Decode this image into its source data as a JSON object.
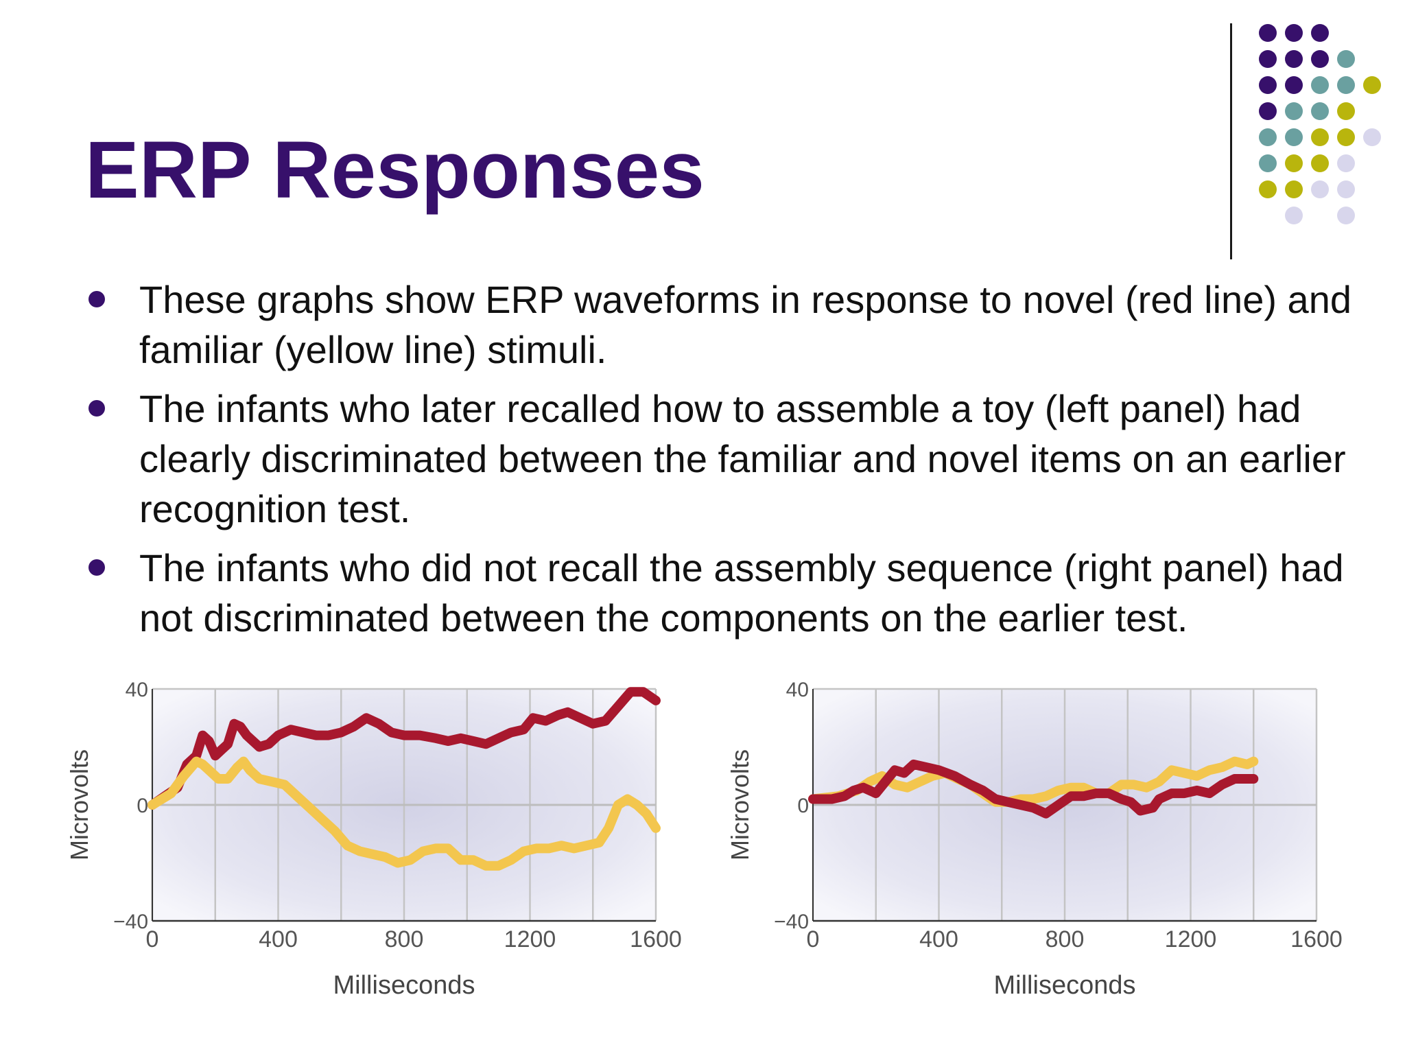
{
  "slide": {
    "title": "ERP Responses",
    "bullets": [
      "These graphs show ERP waveforms in response to novel (red line) and familiar (yellow line) stimuli.",
      "The infants who later recalled how to assemble a toy (left panel) had clearly discriminated between the familiar and novel items on an earlier recognition test.",
      "The infants who did not recall the assembly sequence (right panel) had not discriminated between the components on the earlier test."
    ]
  },
  "colors": {
    "title": "#37106b",
    "dot_purple": "#37106b",
    "dot_teal": "#6aa0a0",
    "dot_olive": "#b9b50d",
    "dot_lavender": "#d8d6ec",
    "novel_line": "#a8182e",
    "familiar_line": "#f3c64e",
    "plot_bg": "#e6e6f2",
    "grid": "#c4c4c4"
  },
  "decoration_dots": [
    [
      "purple",
      "purple",
      "purple",
      "",
      ""
    ],
    [
      "purple",
      "purple",
      "purple",
      "teal",
      ""
    ],
    [
      "purple",
      "purple",
      "teal",
      "teal",
      "olive"
    ],
    [
      "purple",
      "teal",
      "teal",
      "olive",
      ""
    ],
    [
      "teal",
      "teal",
      "olive",
      "olive",
      "lavender"
    ],
    [
      "teal",
      "olive",
      "olive",
      "lavender",
      ""
    ],
    [
      "olive",
      "olive",
      "lavender",
      "lavender",
      ""
    ],
    [
      "",
      "lavender",
      "",
      "lavender",
      ""
    ]
  ],
  "chart_data": [
    {
      "type": "line",
      "panel": "left",
      "xlabel": "Milliseconds",
      "ylabel": "Microvolts",
      "xlim": [
        0,
        1600
      ],
      "ylim": [
        -40,
        40
      ],
      "x_ticks": [
        "0",
        "400",
        "800",
        "1200",
        "1600"
      ],
      "y_ticks": [
        "40",
        "0",
        "−40"
      ],
      "grid": true,
      "series": [
        {
          "color": "novel_line",
          "points": [
            [
              0,
              0
            ],
            [
              40,
              3
            ],
            [
              80,
              6
            ],
            [
              110,
              14
            ],
            [
              140,
              17
            ],
            [
              160,
              24
            ],
            [
              180,
              22
            ],
            [
              200,
              17
            ],
            [
              220,
              19
            ],
            [
              240,
              21
            ],
            [
              260,
              28
            ],
            [
              280,
              27
            ],
            [
              300,
              24
            ],
            [
              340,
              20
            ],
            [
              370,
              21
            ],
            [
              400,
              24
            ],
            [
              440,
              26
            ],
            [
              480,
              25
            ],
            [
              520,
              24
            ],
            [
              560,
              24
            ],
            [
              600,
              25
            ],
            [
              640,
              27
            ],
            [
              680,
              30
            ],
            [
              720,
              28
            ],
            [
              760,
              25
            ],
            [
              800,
              24
            ],
            [
              850,
              24
            ],
            [
              900,
              23
            ],
            [
              940,
              22
            ],
            [
              980,
              23
            ],
            [
              1020,
              22
            ],
            [
              1060,
              21
            ],
            [
              1100,
              23
            ],
            [
              1140,
              25
            ],
            [
              1180,
              26
            ],
            [
              1210,
              30
            ],
            [
              1250,
              29
            ],
            [
              1290,
              31
            ],
            [
              1320,
              32
            ],
            [
              1360,
              30
            ],
            [
              1400,
              28
            ],
            [
              1440,
              29
            ],
            [
              1480,
              34
            ],
            [
              1520,
              39
            ],
            [
              1560,
              39
            ],
            [
              1600,
              36
            ]
          ]
        },
        {
          "color": "familiar_line",
          "points": [
            [
              0,
              0
            ],
            [
              60,
              4
            ],
            [
              100,
              10
            ],
            [
              140,
              15
            ],
            [
              160,
              14
            ],
            [
              180,
              12
            ],
            [
              210,
              9
            ],
            [
              240,
              9
            ],
            [
              270,
              13
            ],
            [
              290,
              15
            ],
            [
              310,
              12
            ],
            [
              340,
              9
            ],
            [
              380,
              8
            ],
            [
              420,
              7
            ],
            [
              460,
              3
            ],
            [
              500,
              -1
            ],
            [
              540,
              -5
            ],
            [
              580,
              -9
            ],
            [
              620,
              -14
            ],
            [
              660,
              -16
            ],
            [
              700,
              -17
            ],
            [
              740,
              -18
            ],
            [
              780,
              -20
            ],
            [
              820,
              -19
            ],
            [
              860,
              -16
            ],
            [
              900,
              -15
            ],
            [
              940,
              -15
            ],
            [
              980,
              -19
            ],
            [
              1020,
              -19
            ],
            [
              1060,
              -21
            ],
            [
              1100,
              -21
            ],
            [
              1140,
              -19
            ],
            [
              1180,
              -16
            ],
            [
              1220,
              -15
            ],
            [
              1260,
              -15
            ],
            [
              1300,
              -14
            ],
            [
              1340,
              -15
            ],
            [
              1380,
              -14
            ],
            [
              1420,
              -13
            ],
            [
              1450,
              -8
            ],
            [
              1480,
              0
            ],
            [
              1510,
              2
            ],
            [
              1540,
              0
            ],
            [
              1570,
              -3
            ],
            [
              1600,
              -8
            ]
          ]
        }
      ]
    },
    {
      "type": "line",
      "panel": "right",
      "xlabel": "Milliseconds",
      "ylabel": "Microvolts",
      "xlim": [
        0,
        1600
      ],
      "ylim": [
        -40,
        40
      ],
      "x_ticks": [
        "0",
        "400",
        "800",
        "1200",
        "1600"
      ],
      "y_ticks": [
        "40",
        "0",
        "−40"
      ],
      "grid": true,
      "series": [
        {
          "color": "familiar_line",
          "points": [
            [
              0,
              2
            ],
            [
              80,
              3
            ],
            [
              140,
              5
            ],
            [
              180,
              8
            ],
            [
              220,
              10
            ],
            [
              260,
              7
            ],
            [
              300,
              6
            ],
            [
              340,
              8
            ],
            [
              380,
              10
            ],
            [
              420,
              11
            ],
            [
              460,
              9
            ],
            [
              500,
              7
            ],
            [
              540,
              4
            ],
            [
              580,
              1
            ],
            [
              620,
              1
            ],
            [
              660,
              2
            ],
            [
              700,
              2
            ],
            [
              740,
              3
            ],
            [
              780,
              5
            ],
            [
              820,
              6
            ],
            [
              860,
              6
            ],
            [
              900,
              4
            ],
            [
              940,
              4
            ],
            [
              980,
              7
            ],
            [
              1020,
              7
            ],
            [
              1060,
              6
            ],
            [
              1100,
              8
            ],
            [
              1140,
              12
            ],
            [
              1180,
              11
            ],
            [
              1220,
              10
            ],
            [
              1260,
              12
            ],
            [
              1300,
              13
            ],
            [
              1340,
              15
            ],
            [
              1380,
              14
            ],
            [
              1400,
              15
            ]
          ]
        },
        {
          "color": "novel_line",
          "points": [
            [
              0,
              2
            ],
            [
              60,
              2
            ],
            [
              100,
              3
            ],
            [
              130,
              5
            ],
            [
              160,
              6
            ],
            [
              200,
              4
            ],
            [
              230,
              8
            ],
            [
              260,
              12
            ],
            [
              290,
              11
            ],
            [
              320,
              14
            ],
            [
              360,
              13
            ],
            [
              400,
              12
            ],
            [
              450,
              10
            ],
            [
              500,
              7
            ],
            [
              540,
              5
            ],
            [
              580,
              2
            ],
            [
              620,
              1
            ],
            [
              660,
              0
            ],
            [
              700,
              -1
            ],
            [
              740,
              -3
            ],
            [
              780,
              0
            ],
            [
              820,
              3
            ],
            [
              860,
              3
            ],
            [
              900,
              4
            ],
            [
              940,
              4
            ],
            [
              980,
              2
            ],
            [
              1010,
              1
            ],
            [
              1040,
              -2
            ],
            [
              1080,
              -1
            ],
            [
              1100,
              2
            ],
            [
              1140,
              4
            ],
            [
              1180,
              4
            ],
            [
              1220,
              5
            ],
            [
              1260,
              4
            ],
            [
              1300,
              7
            ],
            [
              1340,
              9
            ],
            [
              1380,
              9
            ],
            [
              1400,
              9
            ]
          ]
        }
      ]
    }
  ]
}
